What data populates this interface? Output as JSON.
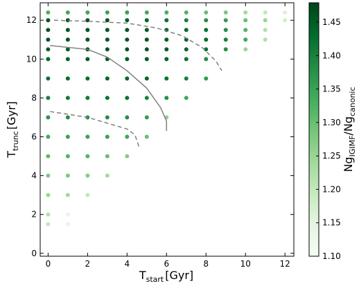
{
  "chart_data": {
    "type": "scatter",
    "xlabel": {
      "main": "T",
      "sub": "start",
      "unit": "[Gyr]"
    },
    "ylabel": {
      "main": "T",
      "sub": "trunc",
      "unit": "[Gyr]"
    },
    "colorbar_label": {
      "a": "Ng",
      "a_sub": "IGIMF",
      "b": "/Ng",
      "b_sub": "canonic"
    },
    "xlim": [
      -0.4,
      12.45
    ],
    "ylim": [
      -0.15,
      12.9
    ],
    "xticks": [
      0,
      2,
      4,
      6,
      8,
      10,
      12
    ],
    "yticks": [
      0,
      2,
      4,
      6,
      8,
      10,
      12
    ],
    "colormap": "Greens",
    "clim": [
      1.1,
      1.479
    ],
    "cticks": [
      {
        "value": 1.1,
        "label": "1.10"
      },
      1.15,
      {
        "value": 1.2,
        "label": "1.20"
      },
      1.25,
      {
        "value": 1.3,
        "label": "1.30"
      },
      1.35,
      {
        "value": 1.4,
        "label": "1.40"
      },
      1.45
    ],
    "x": [
      0,
      1,
      2,
      3,
      4,
      5,
      6,
      7,
      8,
      9,
      10,
      11,
      12,
      0,
      1,
      2,
      3,
      4,
      5,
      6,
      7,
      8,
      9,
      10,
      11,
      12,
      0,
      1,
      2,
      3,
      4,
      5,
      6,
      7,
      8,
      9,
      10,
      11,
      0,
      1,
      2,
      3,
      4,
      5,
      6,
      7,
      8,
      9,
      10,
      11,
      0,
      1,
      2,
      3,
      4,
      5,
      6,
      7,
      8,
      9,
      10,
      0,
      1,
      2,
      3,
      4,
      5,
      6,
      7,
      8,
      0,
      1,
      2,
      3,
      4,
      5,
      6,
      7,
      8,
      0,
      1,
      2,
      3,
      4,
      5,
      6,
      7,
      0,
      1,
      2,
      3,
      4,
      5,
      6,
      0,
      1,
      2,
      3,
      4,
      5,
      0,
      1,
      2,
      3,
      4,
      0,
      1,
      2,
      3,
      0,
      1,
      2,
      0,
      1,
      0,
      1
    ],
    "y": [
      12.4,
      12.4,
      12.4,
      12.4,
      12.4,
      12.4,
      12.4,
      12.4,
      12.4,
      12.4,
      12.4,
      12.4,
      12.4,
      12,
      12,
      12,
      12,
      12,
      12,
      12,
      12,
      12,
      12,
      12,
      12,
      12,
      11.5,
      11.5,
      11.5,
      11.5,
      11.5,
      11.5,
      11.5,
      11.5,
      11.5,
      11.5,
      11.5,
      11.5,
      11,
      11,
      11,
      11,
      11,
      11,
      11,
      11,
      11,
      11,
      11,
      11,
      10.5,
      10.5,
      10.5,
      10.5,
      10.5,
      10.5,
      10.5,
      10.5,
      10.5,
      10.5,
      10.5,
      10,
      10,
      10,
      10,
      10,
      10,
      10,
      10,
      10,
      9,
      9,
      9,
      9,
      9,
      9,
      9,
      9,
      9,
      8,
      8,
      8,
      8,
      8,
      8,
      8,
      8,
      7,
      7,
      7,
      7,
      7,
      7,
      7,
      6,
      6,
      6,
      6,
      6,
      6,
      5,
      5,
      5,
      5,
      5,
      4,
      4,
      4,
      4,
      3,
      3,
      3,
      2,
      2,
      1.5,
      1.5
    ],
    "values": [
      1.33,
      1.34,
      1.34,
      1.35,
      1.35,
      1.34,
      1.33,
      1.32,
      1.3,
      1.28,
      1.24,
      1.2,
      1.16,
      1.46,
      1.46,
      1.46,
      1.46,
      1.45,
      1.44,
      1.42,
      1.4,
      1.38,
      1.36,
      1.3,
      1.25,
      1.18,
      1.46,
      1.46,
      1.46,
      1.46,
      1.46,
      1.45,
      1.44,
      1.43,
      1.42,
      1.38,
      1.32,
      1.22,
      1.46,
      1.46,
      1.46,
      1.46,
      1.46,
      1.46,
      1.45,
      1.44,
      1.43,
      1.4,
      1.34,
      1.22,
      1.45,
      1.45,
      1.46,
      1.46,
      1.46,
      1.46,
      1.45,
      1.44,
      1.42,
      1.38,
      1.25,
      1.44,
      1.44,
      1.45,
      1.45,
      1.45,
      1.45,
      1.44,
      1.42,
      1.38,
      1.42,
      1.43,
      1.43,
      1.44,
      1.44,
      1.44,
      1.42,
      1.4,
      1.36,
      1.4,
      1.41,
      1.41,
      1.42,
      1.42,
      1.4,
      1.38,
      1.34,
      1.37,
      1.38,
      1.38,
      1.38,
      1.38,
      1.36,
      1.26,
      1.34,
      1.35,
      1.35,
      1.35,
      1.34,
      1.3,
      1.31,
      1.32,
      1.32,
      1.3,
      1.27,
      1.28,
      1.28,
      1.27,
      1.24,
      1.25,
      1.24,
      1.2,
      1.22,
      1.14,
      1.2,
      1.14
    ],
    "lines": [
      {
        "style": "dashed",
        "color": "#808080",
        "x": [
          0.3,
          2,
          4,
          5.5,
          6.8,
          7.8,
          8.5,
          8.8
        ],
        "y": [
          12.0,
          11.95,
          11.85,
          11.6,
          11.2,
          10.6,
          9.9,
          9.4
        ]
      },
      {
        "style": "solid",
        "color": "#808080",
        "x": [
          0.1,
          2,
          3,
          4,
          5,
          5.7,
          6,
          6
        ],
        "y": [
          10.7,
          10.5,
          10.1,
          9.4,
          8.5,
          7.5,
          6.8,
          6.3
        ]
      },
      {
        "style": "dashed",
        "color": "#808080",
        "x": [
          0.1,
          2,
          3,
          4,
          4.4,
          4.6
        ],
        "y": [
          7.3,
          7.0,
          6.7,
          6.4,
          6.1,
          5.5
        ]
      }
    ]
  }
}
